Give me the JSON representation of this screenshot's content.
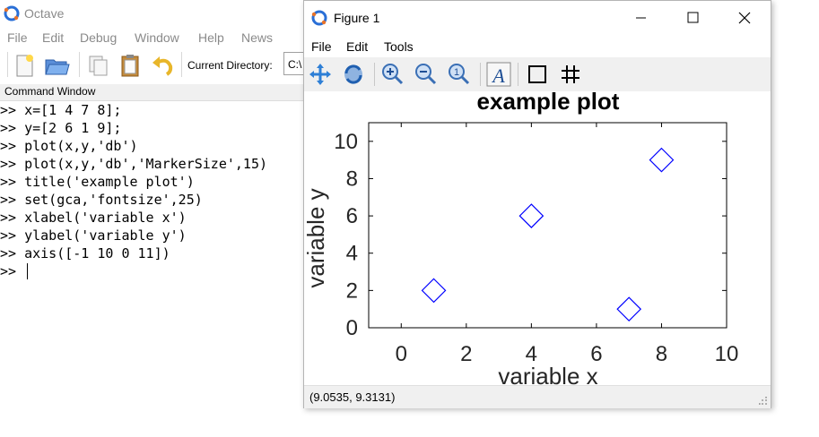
{
  "octave": {
    "title": "Octave",
    "menu": [
      "File",
      "Edit",
      "Debug",
      "Window",
      "Help",
      "News"
    ],
    "current_directory_label": "Current Directory:",
    "current_directory_value": "C:\\",
    "command_window_label": "Command Window",
    "commands": [
      ">> x=[1 4 7 8];",
      ">> y=[2 6 1 9];",
      ">> plot(x,y,'db')",
      ">> plot(x,y,'db','MarkerSize',15)",
      ">> title('example plot')",
      ">> set(gca,'fontsize',25)",
      ">> xlabel('variable x')",
      ">> ylabel('variable y')",
      ">> axis([-1 10 0 11])",
      ">>"
    ]
  },
  "figure": {
    "title": "Figure 1",
    "menu": [
      "File",
      "Edit",
      "Tools"
    ],
    "status": "(9.0535, 9.3131)",
    "colors": {
      "marker": "#0000ff",
      "axes": "#000000"
    }
  },
  "chart_data": {
    "type": "scatter",
    "title": "example plot",
    "xlabel": "variable x",
    "ylabel": "variable y",
    "x": [
      1,
      4,
      7,
      8
    ],
    "y": [
      2,
      6,
      1,
      9
    ],
    "marker": "diamond",
    "color": "#0000ff",
    "xlim": [
      -1,
      10
    ],
    "ylim": [
      0,
      11
    ],
    "xticks": [
      0,
      2,
      4,
      6,
      8,
      10
    ],
    "yticks": [
      0,
      2,
      4,
      6,
      8,
      10
    ],
    "grid": false
  }
}
